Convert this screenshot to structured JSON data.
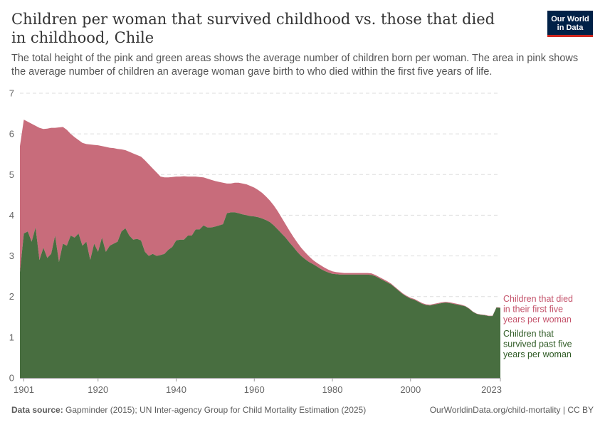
{
  "header": {
    "title": "Children per woman that survived childhood vs. those that died in childhood, Chile",
    "subtitle": "The total height of the pink and green areas shows the average number of children born per woman. The area in pink shows the average number of children an average woman gave birth to who died within the first five years of life.",
    "logo_line1": "Our World",
    "logo_line2": "in Data"
  },
  "footer": {
    "source_label": "Data source:",
    "source_text": "Gapminder (2015); UN Inter-agency Group for Child Mortality Estimation (2025)",
    "credit": "OurWorldinData.org/child-mortality | CC BY"
  },
  "colors": {
    "died": "#c86c7b",
    "died_text": "#c4526a",
    "survived": "#486e40",
    "survived_text": "#2e5a24"
  },
  "chart_data": {
    "type": "area",
    "stacked": true,
    "title": "Children per woman that survived childhood vs. those that died in childhood, Chile",
    "xlim": [
      1900,
      2023
    ],
    "ylim": [
      0,
      7
    ],
    "x_ticks": [
      1901,
      1920,
      1940,
      1960,
      1980,
      2000,
      2023
    ],
    "x_tick_labels": [
      "1901",
      "1920",
      "1940",
      "1960",
      "1980",
      "2000",
      "2023"
    ],
    "y_ticks": [
      0,
      1,
      2,
      3,
      4,
      5,
      6,
      7
    ],
    "grid": "horizontal dashed",
    "legend_placement": "right, inline at series end",
    "series": [
      {
        "name": "Children that survived past five years per woman",
        "label_lines": [
          "Children that",
          "survived past five",
          "years per woman"
        ],
        "points": [
          [
            1900,
            2.6
          ],
          [
            1901,
            3.55
          ],
          [
            1902,
            3.6
          ],
          [
            1903,
            3.35
          ],
          [
            1904,
            3.7
          ],
          [
            1905,
            2.9
          ],
          [
            1906,
            3.2
          ],
          [
            1907,
            2.95
          ],
          [
            1908,
            3.05
          ],
          [
            1909,
            3.5
          ],
          [
            1910,
            2.85
          ],
          [
            1911,
            3.3
          ],
          [
            1912,
            3.25
          ],
          [
            1913,
            3.5
          ],
          [
            1914,
            3.45
          ],
          [
            1915,
            3.55
          ],
          [
            1916,
            3.25
          ],
          [
            1917,
            3.35
          ],
          [
            1918,
            2.9
          ],
          [
            1919,
            3.3
          ],
          [
            1920,
            3.1
          ],
          [
            1921,
            3.45
          ],
          [
            1922,
            3.1
          ],
          [
            1923,
            3.25
          ],
          [
            1924,
            3.3
          ],
          [
            1925,
            3.35
          ],
          [
            1926,
            3.6
          ],
          [
            1927,
            3.68
          ],
          [
            1928,
            3.5
          ],
          [
            1929,
            3.4
          ],
          [
            1930,
            3.42
          ],
          [
            1931,
            3.38
          ],
          [
            1932,
            3.1
          ],
          [
            1933,
            3.0
          ],
          [
            1934,
            3.05
          ],
          [
            1935,
            3.0
          ],
          [
            1936,
            3.02
          ],
          [
            1937,
            3.05
          ],
          [
            1938,
            3.15
          ],
          [
            1939,
            3.22
          ],
          [
            1940,
            3.38
          ],
          [
            1941,
            3.4
          ],
          [
            1942,
            3.4
          ],
          [
            1943,
            3.5
          ],
          [
            1944,
            3.5
          ],
          [
            1945,
            3.65
          ],
          [
            1946,
            3.65
          ],
          [
            1947,
            3.75
          ],
          [
            1948,
            3.7
          ],
          [
            1949,
            3.7
          ],
          [
            1950,
            3.72
          ],
          [
            1951,
            3.75
          ],
          [
            1952,
            3.78
          ],
          [
            1953,
            4.05
          ],
          [
            1954,
            4.07
          ],
          [
            1955,
            4.07
          ],
          [
            1956,
            4.05
          ],
          [
            1957,
            4.02
          ],
          [
            1958,
            4.0
          ],
          [
            1959,
            3.98
          ],
          [
            1960,
            3.97
          ],
          [
            1961,
            3.95
          ],
          [
            1962,
            3.92
          ],
          [
            1963,
            3.88
          ],
          [
            1964,
            3.83
          ],
          [
            1965,
            3.75
          ],
          [
            1966,
            3.65
          ],
          [
            1967,
            3.55
          ],
          [
            1968,
            3.45
          ],
          [
            1969,
            3.33
          ],
          [
            1970,
            3.22
          ],
          [
            1971,
            3.1
          ],
          [
            1972,
            3.0
          ],
          [
            1973,
            2.92
          ],
          [
            1974,
            2.85
          ],
          [
            1975,
            2.8
          ],
          [
            1976,
            2.74
          ],
          [
            1977,
            2.68
          ],
          [
            1978,
            2.63
          ],
          [
            1979,
            2.59
          ],
          [
            1980,
            2.56
          ],
          [
            1981,
            2.55
          ],
          [
            1982,
            2.54
          ],
          [
            1983,
            2.54
          ],
          [
            1984,
            2.54
          ],
          [
            1985,
            2.54
          ],
          [
            1986,
            2.54
          ],
          [
            1987,
            2.54
          ],
          [
            1988,
            2.54
          ],
          [
            1989,
            2.54
          ],
          [
            1990,
            2.53
          ],
          [
            1991,
            2.5
          ],
          [
            1992,
            2.45
          ],
          [
            1993,
            2.4
          ],
          [
            1994,
            2.35
          ],
          [
            1995,
            2.3
          ],
          [
            1996,
            2.22
          ],
          [
            1997,
            2.14
          ],
          [
            1998,
            2.06
          ],
          [
            1999,
            2.0
          ],
          [
            2000,
            1.95
          ],
          [
            2001,
            1.92
          ],
          [
            2002,
            1.87
          ],
          [
            2003,
            1.82
          ],
          [
            2004,
            1.79
          ],
          [
            2005,
            1.78
          ],
          [
            2006,
            1.8
          ],
          [
            2007,
            1.82
          ],
          [
            2008,
            1.84
          ],
          [
            2009,
            1.85
          ],
          [
            2010,
            1.84
          ],
          [
            2011,
            1.82
          ],
          [
            2012,
            1.8
          ],
          [
            2013,
            1.78
          ],
          [
            2014,
            1.76
          ],
          [
            2015,
            1.7
          ],
          [
            2016,
            1.62
          ],
          [
            2017,
            1.57
          ],
          [
            2018,
            1.55
          ],
          [
            2019,
            1.54
          ],
          [
            2020,
            1.52
          ],
          [
            2021,
            1.52
          ],
          [
            2022,
            1.73
          ],
          [
            2023,
            1.72
          ]
        ]
      },
      {
        "name": "Children that died in their first five years per woman",
        "label_lines": [
          "Children that died",
          "in their first five",
          "years per woman"
        ],
        "total_points": [
          [
            1900,
            5.7
          ],
          [
            1901,
            6.35
          ],
          [
            1902,
            6.3
          ],
          [
            1903,
            6.25
          ],
          [
            1904,
            6.2
          ],
          [
            1905,
            6.15
          ],
          [
            1906,
            6.12
          ],
          [
            1907,
            6.13
          ],
          [
            1908,
            6.15
          ],
          [
            1909,
            6.15
          ],
          [
            1910,
            6.16
          ],
          [
            1911,
            6.17
          ],
          [
            1912,
            6.1
          ],
          [
            1913,
            6.0
          ],
          [
            1914,
            5.92
          ],
          [
            1915,
            5.85
          ],
          [
            1916,
            5.78
          ],
          [
            1917,
            5.75
          ],
          [
            1918,
            5.74
          ],
          [
            1919,
            5.73
          ],
          [
            1920,
            5.72
          ],
          [
            1921,
            5.7
          ],
          [
            1922,
            5.68
          ],
          [
            1923,
            5.66
          ],
          [
            1924,
            5.65
          ],
          [
            1925,
            5.63
          ],
          [
            1926,
            5.62
          ],
          [
            1927,
            5.6
          ],
          [
            1928,
            5.56
          ],
          [
            1929,
            5.52
          ],
          [
            1930,
            5.48
          ],
          [
            1931,
            5.44
          ],
          [
            1932,
            5.35
          ],
          [
            1933,
            5.25
          ],
          [
            1934,
            5.15
          ],
          [
            1935,
            5.05
          ],
          [
            1936,
            4.95
          ],
          [
            1937,
            4.93
          ],
          [
            1938,
            4.93
          ],
          [
            1939,
            4.94
          ],
          [
            1940,
            4.95
          ],
          [
            1941,
            4.95
          ],
          [
            1942,
            4.96
          ],
          [
            1943,
            4.95
          ],
          [
            1944,
            4.95
          ],
          [
            1945,
            4.95
          ],
          [
            1946,
            4.94
          ],
          [
            1947,
            4.93
          ],
          [
            1948,
            4.9
          ],
          [
            1949,
            4.87
          ],
          [
            1950,
            4.84
          ],
          [
            1951,
            4.82
          ],
          [
            1952,
            4.8
          ],
          [
            1953,
            4.78
          ],
          [
            1954,
            4.78
          ],
          [
            1955,
            4.8
          ],
          [
            1956,
            4.8
          ],
          [
            1957,
            4.78
          ],
          [
            1958,
            4.76
          ],
          [
            1959,
            4.72
          ],
          [
            1960,
            4.68
          ],
          [
            1961,
            4.62
          ],
          [
            1962,
            4.55
          ],
          [
            1963,
            4.46
          ],
          [
            1964,
            4.36
          ],
          [
            1965,
            4.24
          ],
          [
            1966,
            4.1
          ],
          [
            1967,
            3.94
          ],
          [
            1968,
            3.78
          ],
          [
            1969,
            3.62
          ],
          [
            1970,
            3.47
          ],
          [
            1971,
            3.33
          ],
          [
            1972,
            3.2
          ],
          [
            1973,
            3.09
          ],
          [
            1974,
            2.99
          ],
          [
            1975,
            2.9
          ],
          [
            1976,
            2.83
          ],
          [
            1977,
            2.77
          ],
          [
            1978,
            2.71
          ],
          [
            1979,
            2.66
          ],
          [
            1980,
            2.62
          ],
          [
            1981,
            2.6
          ],
          [
            1982,
            2.59
          ],
          [
            1983,
            2.58
          ],
          [
            1984,
            2.58
          ],
          [
            1985,
            2.58
          ],
          [
            1986,
            2.58
          ],
          [
            1987,
            2.58
          ],
          [
            1988,
            2.58
          ],
          [
            1989,
            2.58
          ],
          [
            1990,
            2.57
          ],
          [
            1991,
            2.53
          ],
          [
            1992,
            2.48
          ],
          [
            1993,
            2.43
          ],
          [
            1994,
            2.38
          ],
          [
            1995,
            2.32
          ],
          [
            1996,
            2.24
          ],
          [
            1997,
            2.16
          ],
          [
            1998,
            2.08
          ],
          [
            1999,
            2.02
          ],
          [
            2000,
            1.97
          ],
          [
            2001,
            1.94
          ],
          [
            2002,
            1.89
          ],
          [
            2003,
            1.84
          ],
          [
            2004,
            1.81
          ],
          [
            2005,
            1.8
          ],
          [
            2006,
            1.82
          ],
          [
            2007,
            1.84
          ],
          [
            2008,
            1.86
          ],
          [
            2009,
            1.87
          ],
          [
            2010,
            1.86
          ],
          [
            2011,
            1.84
          ],
          [
            2012,
            1.82
          ],
          [
            2013,
            1.8
          ],
          [
            2014,
            1.77
          ],
          [
            2015,
            1.71
          ],
          [
            2016,
            1.63
          ],
          [
            2017,
            1.58
          ],
          [
            2018,
            1.56
          ],
          [
            2019,
            1.55
          ],
          [
            2020,
            1.53
          ],
          [
            2021,
            1.53
          ],
          [
            2022,
            1.74
          ],
          [
            2023,
            1.73
          ]
        ]
      }
    ]
  }
}
